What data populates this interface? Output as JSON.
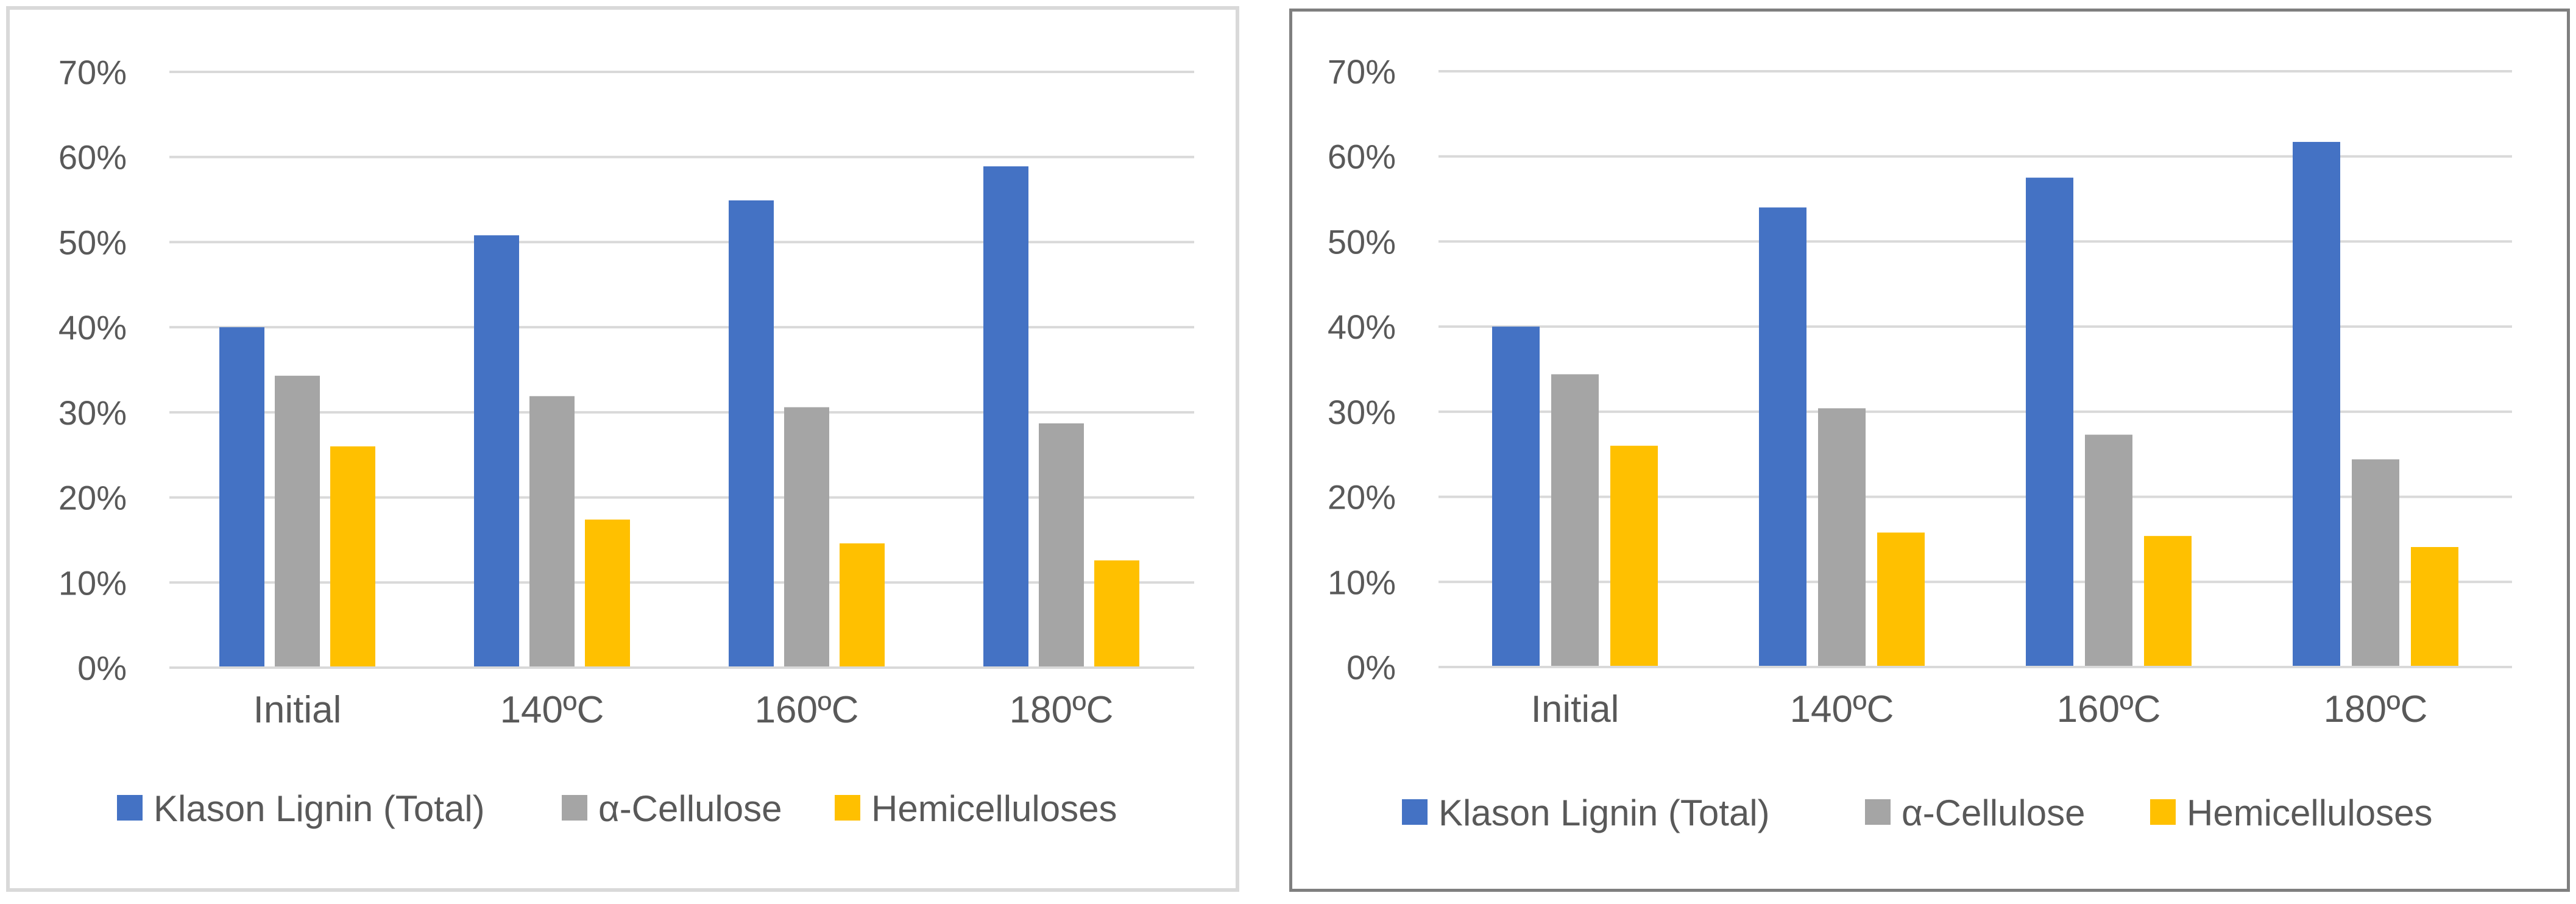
{
  "chart_data": [
    {
      "type": "bar",
      "title": "",
      "xlabel": "",
      "ylabel": "",
      "categories": [
        "Initial",
        "140ºC",
        "160ºC",
        "180ºC"
      ],
      "yticks": [
        "0%",
        "10%",
        "20%",
        "30%",
        "40%",
        "50%",
        "60%",
        "70%"
      ],
      "ylim": [
        0,
        70
      ],
      "grid": true,
      "legend_position": "bottom",
      "series": [
        {
          "name": "Klason Lignin (Total)",
          "color": "#4472c4",
          "values": [
            40.0,
            50.8,
            54.9,
            58.9
          ]
        },
        {
          "name": "α-Cellulose",
          "color": "#a5a5a5",
          "values": [
            34.3,
            31.9,
            30.6,
            28.7
          ]
        },
        {
          "name": "Hemicelluloses",
          "color": "#ffc000",
          "values": [
            26.0,
            17.4,
            14.6,
            12.6
          ]
        }
      ]
    },
    {
      "type": "bar",
      "title": "",
      "xlabel": "",
      "ylabel": "",
      "categories": [
        "Initial",
        "140ºC",
        "160ºC",
        "180ºC"
      ],
      "yticks": [
        "0%",
        "10%",
        "20%",
        "30%",
        "40%",
        "50%",
        "60%",
        "70%"
      ],
      "ylim": [
        0,
        70
      ],
      "grid": true,
      "legend_position": "bottom",
      "series": [
        {
          "name": "Klason Lignin (Total)",
          "color": "#4472c4",
          "values": [
            40.0,
            54.0,
            57.5,
            61.7
          ]
        },
        {
          "name": "α-Cellulose",
          "color": "#a5a5a5",
          "values": [
            34.4,
            30.4,
            27.3,
            24.4
          ]
        },
        {
          "name": "Hemicelluloses",
          "color": "#ffc000",
          "values": [
            26.0,
            15.8,
            15.4,
            14.1
          ]
        }
      ]
    }
  ]
}
